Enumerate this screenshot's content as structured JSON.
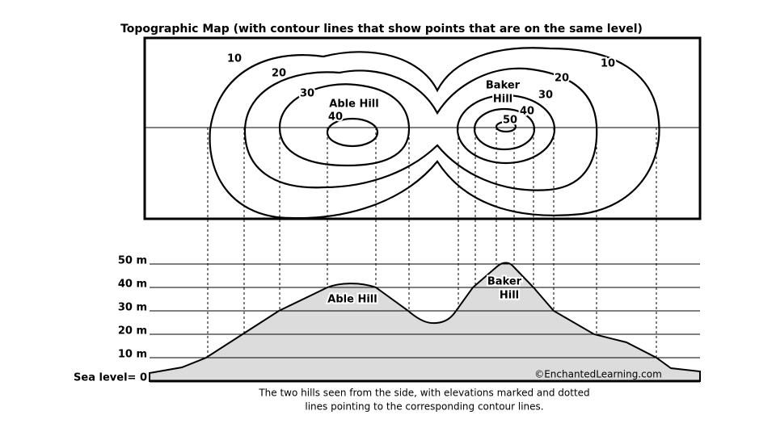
{
  "title": "Topographic Map (with contour lines that show points that are on the same level)",
  "map": {
    "labels": [
      "10",
      "20",
      "30",
      "Able Hill",
      "40",
      "Baker",
      "Hill",
      "20",
      "30",
      "40",
      "50",
      "10"
    ]
  },
  "profile": {
    "levels": [
      "50 m",
      "40 m",
      "30 m",
      "20 m",
      "10 m",
      "Sea level= 0"
    ],
    "labels": [
      "Able Hill",
      "Baker",
      "Hill"
    ]
  },
  "credit": "©EnchantedLearning.com",
  "caption": [
    "The two hills seen from the side, with elevations marked and dotted",
    "lines pointing to the corresponding contour lines."
  ]
}
